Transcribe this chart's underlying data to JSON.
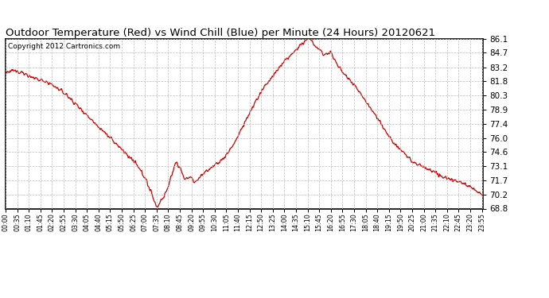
{
  "title": "Outdoor Temperature (Red) vs Wind Chill (Blue) per Minute (24 Hours) 20120621",
  "copyright": "Copyright 2012 Cartronics.com",
  "yticks": [
    68.8,
    70.2,
    71.7,
    73.1,
    74.6,
    76.0,
    77.4,
    78.9,
    80.3,
    81.8,
    83.2,
    84.7,
    86.1
  ],
  "ymin": 68.8,
  "ymax": 86.1,
  "line_color": "#cc0000",
  "bg_color": "#ffffff",
  "plot_bg_color": "#ffffff",
  "grid_color": "#bbbbbb",
  "title_fontsize": 9.5,
  "copyright_fontsize": 6.5,
  "xtick_labels": [
    "00:00",
    "00:35",
    "01:10",
    "01:45",
    "02:20",
    "02:55",
    "03:30",
    "04:05",
    "04:40",
    "05:15",
    "05:50",
    "06:25",
    "07:00",
    "07:35",
    "08:10",
    "08:45",
    "09:20",
    "09:55",
    "10:30",
    "11:05",
    "11:40",
    "12:15",
    "12:50",
    "13:25",
    "14:00",
    "14:35",
    "15:10",
    "15:45",
    "16:20",
    "16:55",
    "17:30",
    "18:05",
    "18:40",
    "19:15",
    "19:50",
    "20:25",
    "21:00",
    "21:35",
    "22:10",
    "22:45",
    "23:20",
    "23:55"
  ],
  "key_times_hours": [
    0.0,
    0.25,
    0.5,
    0.75,
    1.0,
    1.5,
    2.0,
    2.5,
    3.0,
    3.5,
    4.0,
    4.5,
    5.0,
    5.5,
    6.0,
    6.5,
    7.0,
    7.5,
    7.583,
    8.0,
    8.25,
    8.5,
    8.583,
    8.75,
    9.0,
    9.25,
    9.5,
    9.583,
    9.75,
    10.0,
    10.5,
    11.0,
    11.5,
    12.0,
    12.5,
    13.0,
    13.5,
    14.0,
    14.5,
    15.0,
    15.167,
    15.333,
    15.5,
    16.0,
    16.25,
    16.333,
    16.5,
    16.75,
    17.0,
    17.5,
    18.0,
    18.5,
    19.0,
    19.5,
    20.0,
    20.5,
    21.0,
    21.5,
    22.0,
    22.5,
    23.0,
    23.5,
    23.917
  ],
  "key_temps": [
    82.5,
    82.8,
    82.9,
    82.7,
    82.5,
    82.0,
    81.8,
    81.2,
    80.5,
    79.5,
    78.5,
    77.5,
    76.5,
    75.5,
    74.5,
    73.5,
    72.0,
    69.5,
    68.9,
    70.2,
    71.5,
    73.3,
    73.5,
    73.0,
    71.8,
    72.0,
    71.5,
    71.6,
    72.0,
    72.5,
    73.2,
    74.0,
    75.5,
    77.5,
    79.5,
    81.2,
    82.5,
    83.8,
    84.8,
    85.8,
    86.1,
    86.0,
    85.5,
    84.5,
    84.7,
    84.8,
    84.0,
    83.2,
    82.5,
    81.5,
    80.0,
    78.5,
    77.0,
    75.5,
    74.5,
    73.5,
    73.0,
    72.5,
    72.0,
    71.7,
    71.4,
    70.8,
    70.2
  ]
}
